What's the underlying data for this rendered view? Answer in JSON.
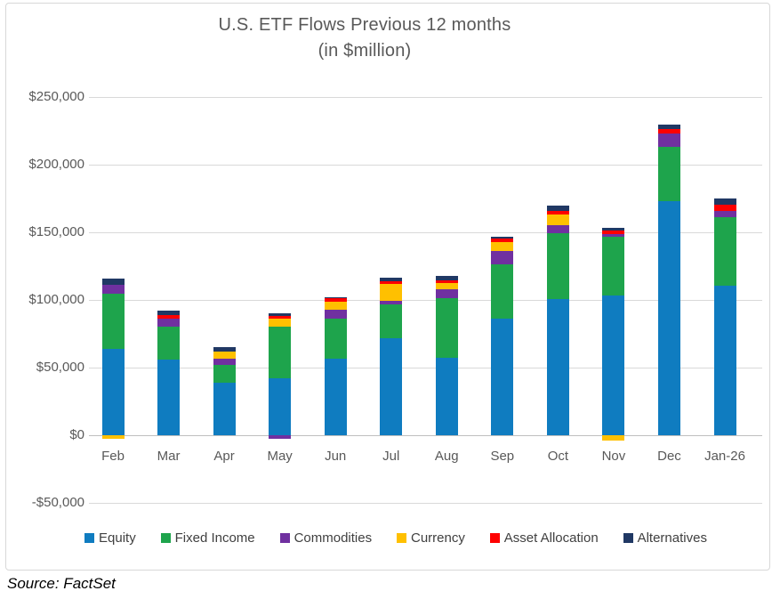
{
  "title": {
    "line1": "U.S. ETF Flows Previous 12 months",
    "line2": "(in $million)"
  },
  "source": "Source: FactSet",
  "colors": {
    "equity": "#0f7cc0",
    "fixed_income": "#1ea44c",
    "commodities": "#7030a0",
    "currency": "#ffc000",
    "asset_allocation": "#fe0000",
    "alternatives": "#203864",
    "gridline": "#d9d9d9",
    "axis_line": "#bfbfbf",
    "title_text": "#595959"
  },
  "chart_data": {
    "type": "bar",
    "stacked": true,
    "title": "U.S. ETF Flows Previous 12 months (in $million)",
    "xlabel": "",
    "ylabel": "",
    "grid": true,
    "legend_position": "bottom",
    "ylim": [
      -50000,
      250000
    ],
    "ytick_values": [
      250000,
      200000,
      150000,
      100000,
      50000,
      0,
      -50000
    ],
    "ytick_labels": [
      "$250,000",
      "$200,000",
      "$150,000",
      "$100,000",
      "$50,000",
      "$0",
      "-$50,000"
    ],
    "categories": [
      "Feb",
      "Mar",
      "Apr",
      "May",
      "Jun",
      "Jul",
      "Aug",
      "Sep",
      "Oct",
      "Nov",
      "Dec",
      "Jan-26"
    ],
    "series": [
      {
        "name": "Equity",
        "color": "#0f7cc0",
        "values": [
          63500,
          56000,
          39000,
          42000,
          56500,
          72000,
          57000,
          86500,
          100500,
          103000,
          173000,
          110500
        ]
      },
      {
        "name": "Fixed Income",
        "color": "#1ea44c",
        "values": [
          41000,
          24000,
          13000,
          38500,
          29500,
          24500,
          44500,
          40000,
          49000,
          44000,
          40000,
          51000
        ]
      },
      {
        "name": "Commodities",
        "color": "#7030a0",
        "values": [
          7000,
          6000,
          4500,
          -2600,
          6500,
          2600,
          6500,
          10000,
          5900,
          2000,
          10000,
          4600
        ]
      },
      {
        "name": "Currency",
        "color": "#ffc000",
        "values": [
          -2600,
          0,
          5300,
          5900,
          6500,
          12500,
          4600,
          6000,
          8000,
          -4000,
          0,
          0
        ]
      },
      {
        "name": "Asset Allocation",
        "color": "#fe0000",
        "values": [
          0,
          2500,
          0,
          2000,
          2000,
          2000,
          2000,
          2600,
          2600,
          2000,
          3300,
          4600
        ]
      },
      {
        "name": "Alternatives",
        "color": "#203864",
        "values": [
          4600,
          3300,
          3300,
          1500,
          1300,
          2600,
          3300,
          1300,
          4000,
          2000,
          3300,
          4000
        ]
      }
    ],
    "approx_totals": [
      116100,
      91800,
      65100,
      89900,
      102300,
      116200,
      117900,
      146400,
      170000,
      153000,
      229600,
      174700
    ]
  }
}
